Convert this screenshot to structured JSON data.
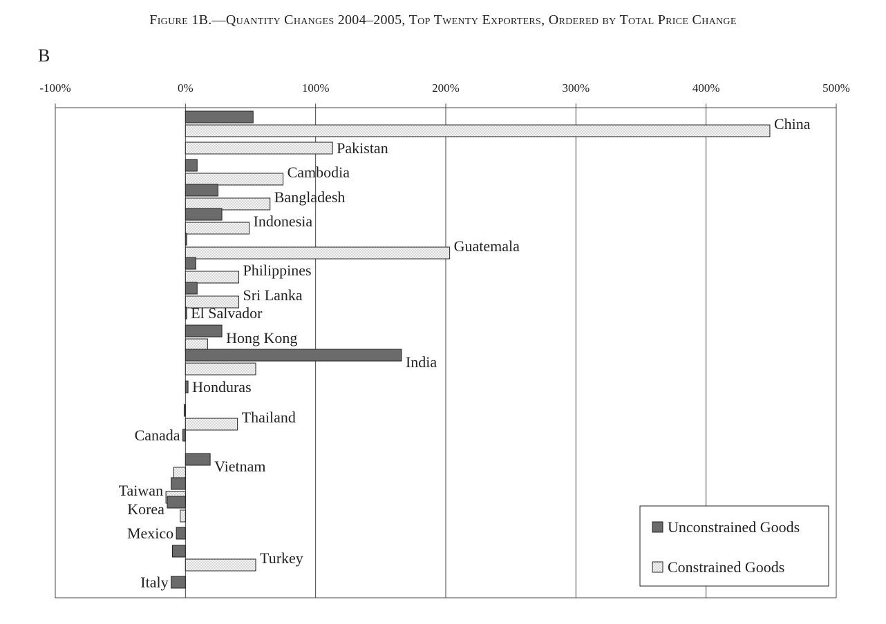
{
  "figure": {
    "title": "Figure 1B.—Quantity Changes 2004–2005, Top Twenty Exporters, Ordered by Total Price Change",
    "panel_label": "B"
  },
  "colors": {
    "unconstrained_fill": "#6b6b6b",
    "constrained_fill": "#f2f2f2",
    "constrained_dots": "#9a9a9a",
    "stroke": "#222222",
    "grid": "#444444"
  },
  "chart_data": {
    "type": "bar",
    "orientation": "horizontal",
    "xlim": [
      -100,
      500
    ],
    "xticks": [
      -100,
      0,
      100,
      200,
      300,
      400,
      500
    ],
    "tick_labels": [
      "-100%",
      "0%",
      "100%",
      "200%",
      "300%",
      "400%",
      "500%"
    ],
    "grid": true,
    "legend_position": "bottom-right",
    "categories": [
      "China",
      "Pakistan",
      "Cambodia",
      "Bangladesh",
      "Indonesia",
      "Guatemala",
      "Philippines",
      "Sri Lanka",
      "El Salvador",
      "Hong Kong",
      "India",
      "Honduras",
      "Thailand",
      "Canada",
      "Vietnam",
      "Taiwan",
      "Korea",
      "Mexico",
      "Turkey",
      "Italy"
    ],
    "series": [
      {
        "name": "Unconstrained Goods",
        "values": [
          52,
          null,
          9,
          25,
          28,
          1,
          8,
          9,
          1,
          28,
          166,
          2,
          -1,
          -2,
          19,
          -11,
          -14,
          -7,
          -10,
          -11
        ]
      },
      {
        "name": "Constrained Goods",
        "values": [
          449,
          113,
          75,
          65,
          49,
          203,
          41,
          41,
          null,
          17,
          54,
          null,
          40,
          null,
          -9,
          -15,
          -4,
          null,
          54,
          null
        ]
      }
    ]
  }
}
